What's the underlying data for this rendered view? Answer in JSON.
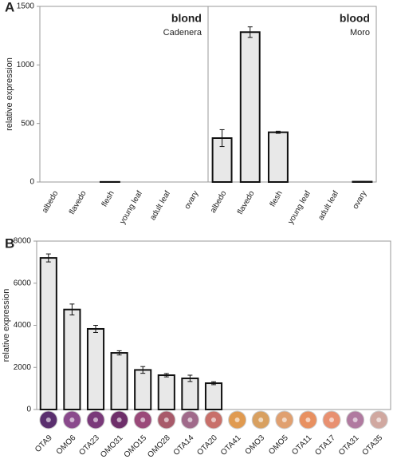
{
  "chart_data": [
    {
      "type": "bar",
      "panel_label": "A",
      "ylabel": "relative expression",
      "categories": [
        "albedo",
        "flavedo",
        "flesh",
        "young leaf",
        "adult leaf",
        "ovary",
        "albedo",
        "flavedo",
        "flesh",
        "young leaf",
        "adult leaf",
        "ovary"
      ],
      "values": [
        0,
        0,
        1,
        0,
        0,
        0,
        375,
        1280,
        425,
        0,
        0,
        3
      ],
      "errors": [
        0,
        0,
        0,
        0,
        0,
        0,
        72,
        45,
        9,
        0,
        0,
        1
      ],
      "groups": [
        {
          "title": "blond",
          "subtitle": "Cadenera"
        },
        {
          "title": "blood",
          "subtitle": "Moro"
        }
      ],
      "color": "#e8e8e8",
      "ylim": [
        0,
        1500
      ],
      "yticks": [
        0,
        500,
        1000,
        1500
      ]
    },
    {
      "type": "bar",
      "panel_label": "B",
      "ylabel": "relative expression",
      "categories": [
        "OTA9",
        "OMO6",
        "OTA23",
        "OMO31",
        "OMO15",
        "OMO28",
        "OTA14",
        "OTA20",
        "OTA41",
        "OMO3",
        "OMO5",
        "OTA11",
        "OTA17",
        "OTA31",
        "OTA35"
      ],
      "values": [
        7200,
        4750,
        3830,
        2690,
        1880,
        1630,
        1480,
        1250,
        0,
        0,
        0,
        0,
        0,
        0,
        0
      ],
      "errors": [
        190,
        260,
        170,
        100,
        160,
        80,
        150,
        70,
        0,
        0,
        0,
        0,
        0,
        0,
        0
      ],
      "color": "#e8e8e8",
      "ylim": [
        0,
        8000
      ],
      "yticks": [
        0,
        2000,
        4000,
        6000,
        8000
      ]
    }
  ]
}
